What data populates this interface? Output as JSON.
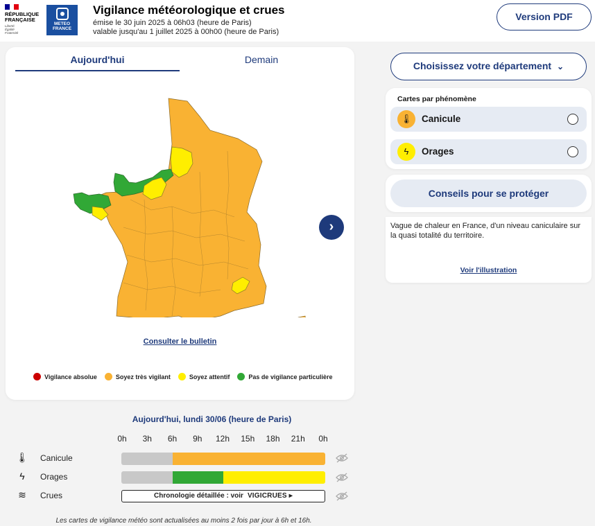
{
  "header": {
    "rf_line1": "RÉPUBLIQUE",
    "rf_line2": "FRANÇAISE",
    "rf_motto": [
      "Liberté",
      "Égalité",
      "Fraternité"
    ],
    "mf_line1": "METEO",
    "mf_line2": "FRANCE",
    "title": "Vigilance météorologique et crues",
    "issued": "émise le 30 juin 2025 à 06h03 (heure de Paris)",
    "valid": "valable jusqu'au 1 juillet 2025 à 00h00 (heure de Paris)",
    "pdf_button": "Version PDF"
  },
  "tabs": [
    {
      "label": "Aujourd'hui",
      "selected": true
    },
    {
      "label": "Demain",
      "selected": false
    }
  ],
  "map": {
    "bulletin_link": "Consulter le bulletin",
    "next_icon": "chevron-right-icon"
  },
  "legend": [
    {
      "label": "Vigilance absolue",
      "color": "#cc0000"
    },
    {
      "label": "Soyez très vigilant",
      "color": "#f9b233"
    },
    {
      "label": "Soyez attentif",
      "color": "#ffee00"
    },
    {
      "label": "Pas de vigilance particulière",
      "color": "#31a836"
    }
  ],
  "sidebar": {
    "department_button": "Choisissez votre département",
    "phenomena_title": "Cartes par phénomène",
    "phenomena": [
      {
        "label": "Canicule",
        "icon": "thermometer-icon",
        "color": "#f9b233"
      },
      {
        "label": "Orages",
        "icon": "lightning-icon",
        "color": "#ffee00"
      }
    ],
    "advice_button": "Conseils pour se protéger",
    "description": "Vague de chaleur en France, d'un niveau caniculaire sur la quasi totalité du territoire.",
    "illustration_link": "Voir l'illustration"
  },
  "chronology": {
    "title": "Aujourd'hui, lundi 30/06 (heure de Paris)",
    "hours": [
      "0h",
      "3h",
      "6h",
      "9h",
      "12h",
      "15h",
      "18h",
      "21h",
      "0h"
    ],
    "rows": [
      {
        "label": "Canicule",
        "icon": "thermometer-icon",
        "segments": [
          {
            "from": 0,
            "to": 6,
            "color": "#c8c8c8"
          },
          {
            "from": 6,
            "to": 24,
            "color": "#f9b233"
          }
        ]
      },
      {
        "label": "Orages",
        "icon": "lightning-icon",
        "segments": [
          {
            "from": 0,
            "to": 6,
            "color": "#c8c8c8"
          },
          {
            "from": 6,
            "to": 12,
            "color": "#31a836"
          },
          {
            "from": 12,
            "to": 24,
            "color": "#ffee00"
          }
        ]
      },
      {
        "label": "Crues",
        "icon": "waves-icon"
      }
    ],
    "crues_text": "Chronologie détaillée : voir",
    "crues_brand": "VIGICRUES ▸"
  },
  "footnote": "Les cartes de vigilance météo sont actualisées au moins 2 fois par jour à 6h et 16h."
}
